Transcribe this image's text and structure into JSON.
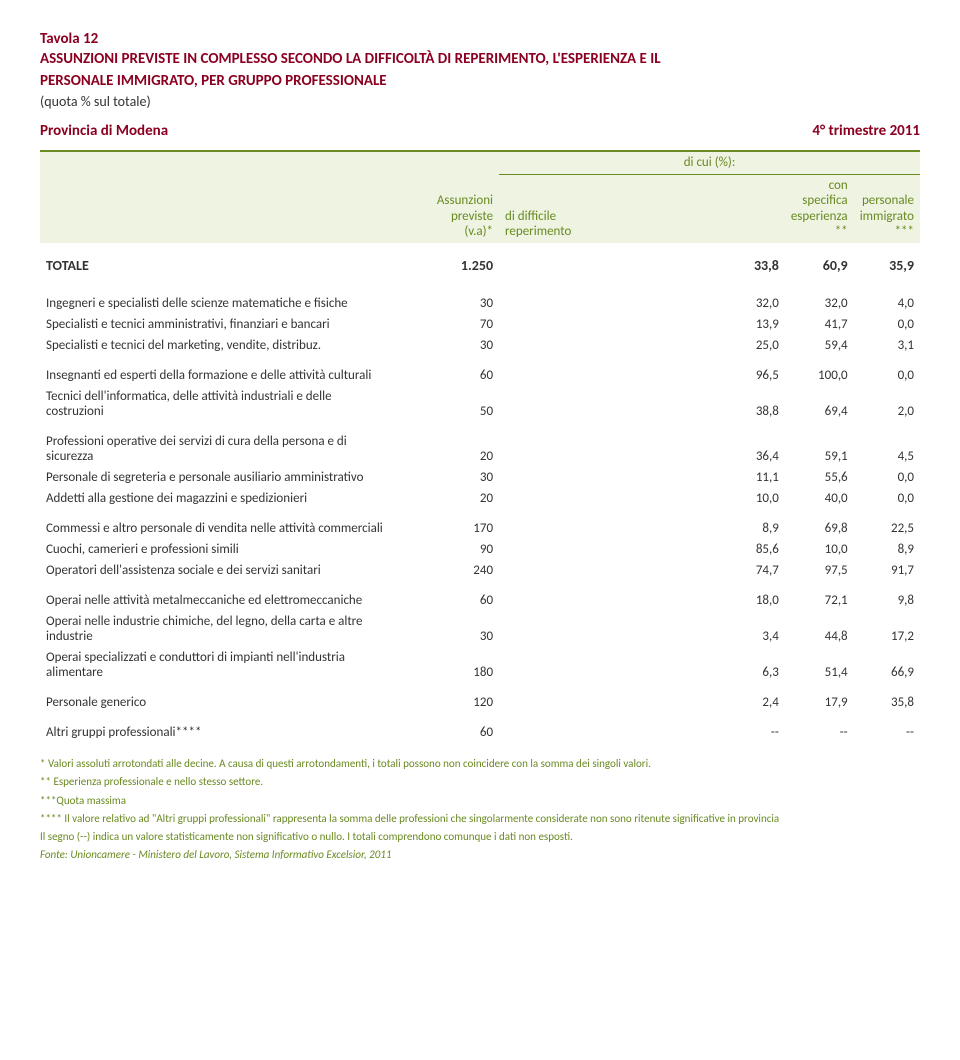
{
  "header": {
    "table_num": "Tavola 12",
    "title_l1": "ASSUNZIONI PREVISTE IN COMPLESSO SECONDO LA DIFFICOLTÀ DI REPERIMENTO, L'ESPERIENZA E IL",
    "title_l2": "PERSONALE IMMIGRATO, PER GRUPPO PROFESSIONALE",
    "subtitle": "(quota % sul totale)",
    "province": "Provincia di Modena",
    "period": "4° trimestre 2011"
  },
  "columns": {
    "col1_l1": "Assunzioni",
    "col1_l2": "previste",
    "col1_l3": "(v.a)*",
    "group": "di cui (%):",
    "col2_l1": "di difficile",
    "col2_l2": "reperimento",
    "col3_l1": "con specifica",
    "col3_l2": "esperienza",
    "col3_l3": "**",
    "col4_l1": "personale",
    "col4_l2": "immigrato",
    "col4_l3": "***"
  },
  "totale": {
    "label": "TOTALE",
    "v": [
      "1.250",
      "33,8",
      "60,9",
      "35,9"
    ]
  },
  "groups": [
    [
      {
        "label": "Ingegneri e specialisti delle scienze matematiche e fisiche",
        "v": [
          "30",
          "32,0",
          "32,0",
          "4,0"
        ]
      },
      {
        "label": "Specialisti e tecnici amministrativi, finanziari e bancari",
        "v": [
          "70",
          "13,9",
          "41,7",
          "0,0"
        ]
      },
      {
        "label": "Specialisti e tecnici del marketing, vendite, distribuz.",
        "v": [
          "30",
          "25,0",
          "59,4",
          "3,1"
        ]
      }
    ],
    [
      {
        "label": "Insegnanti ed esperti della formazione e delle attività culturali",
        "v": [
          "60",
          "96,5",
          "100,0",
          "0,0"
        ]
      },
      {
        "label": "Tecnici dell'informatica, delle attività industriali e delle costruzioni",
        "v": [
          "50",
          "38,8",
          "69,4",
          "2,0"
        ]
      }
    ],
    [
      {
        "label": "Professioni operative dei servizi di cura della persona e di sicurezza",
        "v": [
          "20",
          "36,4",
          "59,1",
          "4,5"
        ]
      },
      {
        "label": "Personale di segreteria e personale ausiliario amministrativo",
        "v": [
          "30",
          "11,1",
          "55,6",
          "0,0"
        ]
      },
      {
        "label": "Addetti alla gestione dei magazzini e spedizionieri",
        "v": [
          "20",
          "10,0",
          "40,0",
          "0,0"
        ]
      }
    ],
    [
      {
        "label": "Commessi e altro personale di vendita nelle attività commerciali",
        "v": [
          "170",
          "8,9",
          "69,8",
          "22,5"
        ]
      },
      {
        "label": "Cuochi, camerieri e professioni simili",
        "v": [
          "90",
          "85,6",
          "10,0",
          "8,9"
        ]
      },
      {
        "label": "Operatori dell'assistenza sociale e dei servizi sanitari",
        "v": [
          "240",
          "74,7",
          "97,5",
          "91,7"
        ]
      }
    ],
    [
      {
        "label": "Operai nelle attività metalmeccaniche ed elettromeccaniche",
        "v": [
          "60",
          "18,0",
          "72,1",
          "9,8"
        ]
      },
      {
        "label": "Operai nelle industrie chimiche, del legno, della carta e altre industrie",
        "v": [
          "30",
          "3,4",
          "44,8",
          "17,2"
        ]
      },
      {
        "label": "Operai specializzati e conduttori di impianti nell'industria alimentare",
        "v": [
          "180",
          "6,3",
          "51,4",
          "66,9"
        ]
      }
    ],
    [
      {
        "label": "Personale generico",
        "v": [
          "120",
          "2,4",
          "17,9",
          "35,8"
        ]
      }
    ],
    [
      {
        "label": "Altri gruppi professionali****",
        "v": [
          "60",
          "--",
          "--",
          "--"
        ]
      }
    ]
  ],
  "footnotes": {
    "n1": "* Valori assoluti arrotondati alle decine. A causa di questi arrotondamenti, i totali possono non coincidere con la somma dei singoli valori.",
    "n2": "** Esperienza professionale e nello stesso settore.",
    "n3": "***Quota massima",
    "n4": "**** Il valore relativo ad \"Altri gruppi professionali\" rappresenta la somma delle professioni che singolarmente considerate non sono ritenute significative in provincia",
    "n5": "Il segno (--) indica un valore statisticamente non significativo o nullo. I totali comprendono comunque i dati non esposti.",
    "source": "Fonte: Unioncamere - Ministero del Lavoro, Sistema Informativo Excelsior, 2011"
  }
}
